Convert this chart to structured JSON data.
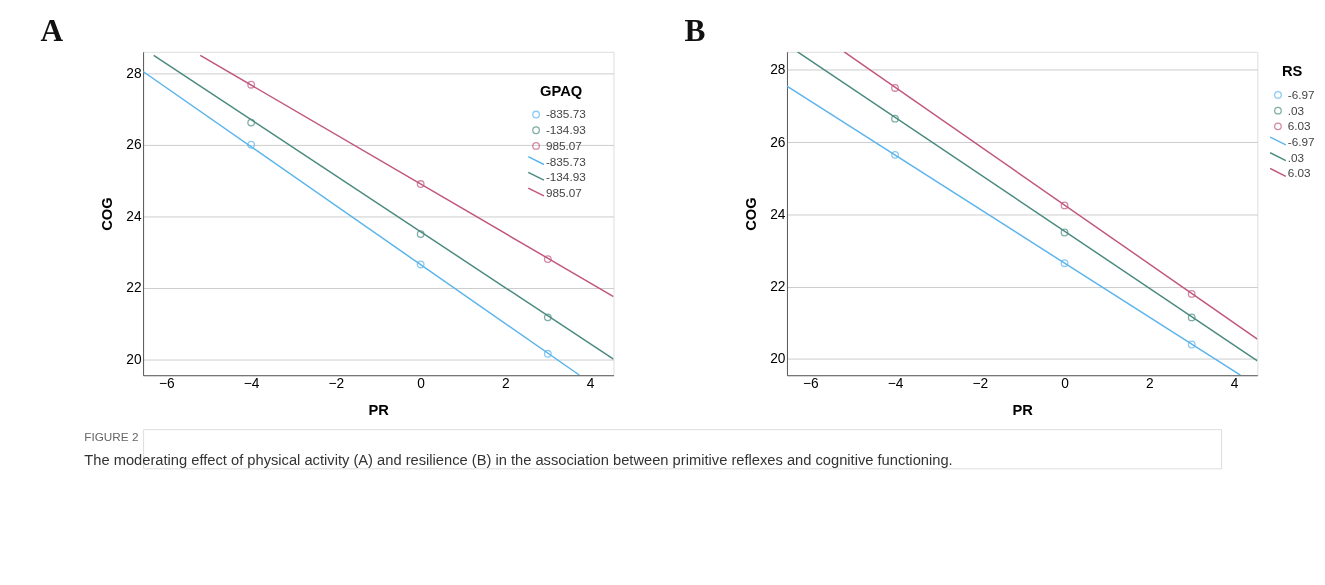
{
  "chart_data": [
    {
      "type": "scatter",
      "title": "A",
      "xlabel": "PR",
      "ylabel": "COG",
      "legend_title": "GPAQ",
      "legend": "top right",
      "grid": "y",
      "marker": "circle",
      "line_style": "solid",
      "xlim": [
        -6.55,
        4.55
      ],
      "ylim": [
        19.55,
        28.6
      ],
      "xticks": [
        -6,
        -4,
        -2,
        0,
        2,
        4
      ],
      "yticks": [
        20,
        22,
        24,
        26,
        28
      ],
      "annotations": [
        "FIGURE 2",
        "The moderating effect of physical activity (A) and resilience (B) in the association between primitive reflexes and cognitive functioning."
      ],
      "series": [
        {
          "name": "-835.73",
          "color": "#5ab4ec",
          "x": [
            -4,
            0,
            3
          ],
          "values": [
            26.0,
            22.65,
            20.15
          ]
        },
        {
          "name": "-134.93",
          "color": "#4a8a7e",
          "x": [
            -4,
            0,
            3
          ],
          "values": [
            26.62,
            23.5,
            21.17
          ]
        },
        {
          "name": "985.07",
          "color": "#c0557e",
          "x": [
            -4,
            0,
            3
          ],
          "values": [
            27.68,
            24.9,
            22.8
          ]
        },
        {
          "name": "-835.73",
          "type": "line",
          "marker": "none",
          "color": "#5ab4ec",
          "x": [
            -6.55,
            3.75
          ],
          "values": [
            28.05,
            19.55
          ]
        },
        {
          "name": "-134.93",
          "type": "line",
          "marker": "none",
          "color": "#4a8a7e",
          "x": [
            -6.3,
            4.55
          ],
          "values": [
            28.5,
            20.0
          ]
        },
        {
          "name": "985.07",
          "type": "line",
          "marker": "none",
          "color": "#c0557e",
          "x": [
            -5.2,
            4.55
          ],
          "values": [
            28.5,
            21.75
          ]
        }
      ]
    },
    {
      "type": "scatter",
      "title": "B",
      "xlabel": "PR",
      "ylabel": "COG",
      "legend_title": "RS",
      "legend": "right",
      "grid": "y",
      "marker": "circle",
      "line_style": "solid",
      "xlim": [
        -6.55,
        4.55
      ],
      "ylim": [
        19.55,
        28.5
      ],
      "xticks": [
        -6,
        -4,
        -2,
        0,
        2,
        4
      ],
      "yticks": [
        20,
        22,
        24,
        26,
        28
      ],
      "series": [
        {
          "name": "-6.97",
          "color": "#5ab4ec",
          "x": [
            -4,
            0,
            3
          ],
          "values": [
            25.65,
            22.65,
            20.4
          ]
        },
        {
          "name": ".03",
          "color": "#4a8a7e",
          "x": [
            -4,
            0,
            3
          ],
          "values": [
            26.65,
            23.5,
            21.15
          ]
        },
        {
          "name": "6.03",
          "color": "#c0557e",
          "x": [
            -4,
            0,
            3
          ],
          "values": [
            27.5,
            24.25,
            21.8
          ]
        },
        {
          "name": "-6.97",
          "type": "line",
          "marker": "none",
          "color": "#5ab4ec",
          "x": [
            -6.55,
            4.15
          ],
          "values": [
            27.55,
            19.55
          ]
        },
        {
          "name": ".03",
          "type": "line",
          "marker": "none",
          "color": "#4a8a7e",
          "x": [
            -6.3,
            4.55
          ],
          "values": [
            28.5,
            19.95
          ]
        },
        {
          "name": "6.03",
          "type": "line",
          "marker": "none",
          "color": "#c0557e",
          "x": [
            -5.2,
            4.55
          ],
          "values": [
            28.5,
            20.55
          ]
        }
      ]
    }
  ]
}
